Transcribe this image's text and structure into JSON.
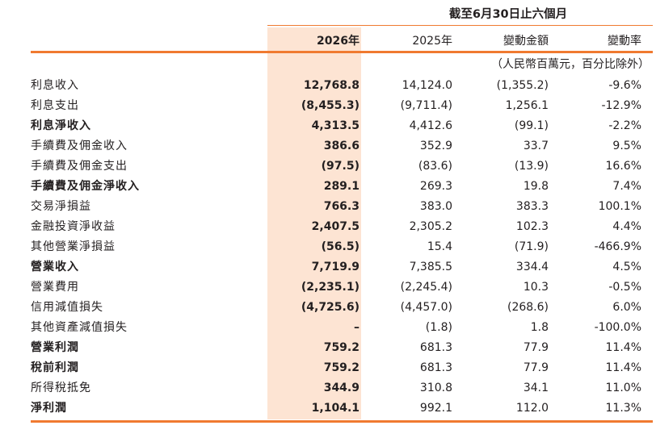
{
  "header": {
    "period": "截至6月30日止六個月",
    "columns": [
      "2026年",
      "2025年",
      "變動金額",
      "變動率"
    ],
    "unit_note": "（人民幣百萬元，百分比除外）"
  },
  "colors": {
    "accent": "#f07a30",
    "highlight": "#fde4d3",
    "text": "#231f20"
  },
  "rows": [
    {
      "label": "利息收入",
      "v2026": "12,768.8",
      "v2025": "14,124.0",
      "change": "(1,355.2)",
      "rate": "-9.6%",
      "bold": false
    },
    {
      "label": "利息支出",
      "v2026": "(8,455.3)",
      "v2025": "(9,711.4)",
      "change": "1,256.1",
      "rate": "-12.9%",
      "bold": false
    },
    {
      "label": "利息淨收入",
      "v2026": "4,313.5",
      "v2025": "4,412.6",
      "change": "(99.1)",
      "rate": "-2.2%",
      "bold": true
    },
    {
      "label": "手續費及佣金收入",
      "v2026": "386.6",
      "v2025": "352.9",
      "change": "33.7",
      "rate": "9.5%",
      "bold": false
    },
    {
      "label": "手續費及佣金支出",
      "v2026": "(97.5)",
      "v2025": "(83.6)",
      "change": "(13.9)",
      "rate": "16.6%",
      "bold": false
    },
    {
      "label": "手續費及佣金淨收入",
      "v2026": "289.1",
      "v2025": "269.3",
      "change": "19.8",
      "rate": "7.4%",
      "bold": true
    },
    {
      "label": "交易淨損益",
      "v2026": "766.3",
      "v2025": "383.0",
      "change": "383.3",
      "rate": "100.1%",
      "bold": false
    },
    {
      "label": "金融投資淨收益",
      "v2026": "2,407.5",
      "v2025": "2,305.2",
      "change": "102.3",
      "rate": "4.4%",
      "bold": false
    },
    {
      "label": "其他營業淨損益",
      "v2026": "(56.5)",
      "v2025": "15.4",
      "change": "(71.9)",
      "rate": "-466.9%",
      "bold": false
    },
    {
      "label": "營業收入",
      "v2026": "7,719.9",
      "v2025": "7,385.5",
      "change": "334.4",
      "rate": "4.5%",
      "bold": true
    },
    {
      "label": "營業費用",
      "v2026": "(2,235.1)",
      "v2025": "(2,245.4)",
      "change": "10.3",
      "rate": "-0.5%",
      "bold": false
    },
    {
      "label": "信用減值損失",
      "v2026": "(4,725.6)",
      "v2025": "(4,457.0)",
      "change": "(268.6)",
      "rate": "6.0%",
      "bold": false
    },
    {
      "label": "其他資產減值損失",
      "v2026": "–",
      "v2025": "(1.8)",
      "change": "1.8",
      "rate": "-100.0%",
      "bold": false
    },
    {
      "label": "營業利潤",
      "v2026": "759.2",
      "v2025": "681.3",
      "change": "77.9",
      "rate": "11.4%",
      "bold": true
    },
    {
      "label": "稅前利潤",
      "v2026": "759.2",
      "v2025": "681.3",
      "change": "77.9",
      "rate": "11.4%",
      "bold": true
    },
    {
      "label": "所得稅抵免",
      "v2026": "344.9",
      "v2025": "310.8",
      "change": "34.1",
      "rate": "11.0%",
      "bold": false
    },
    {
      "label": "淨利潤",
      "v2026": "1,104.1",
      "v2025": "992.1",
      "change": "112.0",
      "rate": "11.3%",
      "bold": true
    }
  ]
}
